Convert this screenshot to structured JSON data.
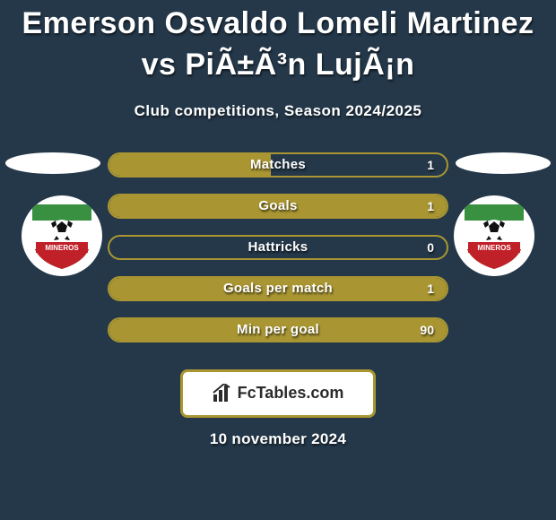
{
  "header": {
    "title": "Emerson Osvaldo Lomeli Martinez vs PiÃ±Ã³n LujÃ¡n",
    "subtitle": "Club competitions, Season 2024/2025"
  },
  "colors": {
    "background": "#24384a",
    "accent": "#a99632",
    "bar_border": "#a99632",
    "text": "#ffffff"
  },
  "stats": {
    "type": "comparison-bars",
    "rows": [
      {
        "label": "Matches",
        "left_value": null,
        "right_value": "1",
        "fill_from": "left",
        "fill_pct": 48
      },
      {
        "label": "Goals",
        "left_value": null,
        "right_value": "1",
        "fill_from": "right",
        "fill_pct": 100
      },
      {
        "label": "Hattricks",
        "left_value": null,
        "right_value": "0",
        "fill_from": "none",
        "fill_pct": 0
      },
      {
        "label": "Goals per match",
        "left_value": null,
        "right_value": "1",
        "fill_from": "right",
        "fill_pct": 100
      },
      {
        "label": "Min per goal",
        "left_value": null,
        "right_value": "90",
        "fill_from": "left",
        "fill_pct": 100
      }
    ]
  },
  "branding": {
    "label": "FcTables.com",
    "icon": "bars-icon"
  },
  "footer": {
    "date": "10 november 2024"
  },
  "teams": {
    "left": {
      "logo": "mineros-logo"
    },
    "right": {
      "logo": "mineros-logo"
    }
  }
}
